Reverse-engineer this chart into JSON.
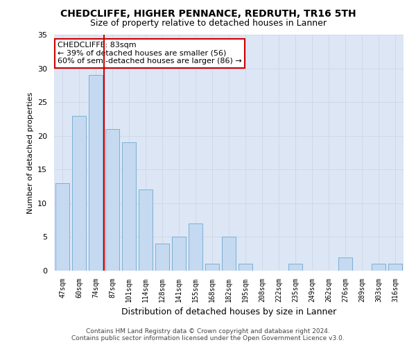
{
  "title1": "CHEDCLIFFE, HIGHER PENNANCE, REDRUTH, TR16 5TH",
  "title2": "Size of property relative to detached houses in Lanner",
  "xlabel": "Distribution of detached houses by size in Lanner",
  "ylabel": "Number of detached properties",
  "categories": [
    "47sqm",
    "60sqm",
    "74sqm",
    "87sqm",
    "101sqm",
    "114sqm",
    "128sqm",
    "141sqm",
    "155sqm",
    "168sqm",
    "182sqm",
    "195sqm",
    "208sqm",
    "222sqm",
    "235sqm",
    "249sqm",
    "262sqm",
    "276sqm",
    "289sqm",
    "303sqm",
    "316sqm"
  ],
  "values": [
    13,
    23,
    29,
    21,
    19,
    12,
    4,
    5,
    7,
    1,
    5,
    1,
    0,
    0,
    1,
    0,
    0,
    2,
    0,
    1,
    1
  ],
  "bar_color": "#c5d9f1",
  "bar_edge_color": "#7ab0d4",
  "vline_color": "#cc0000",
  "annotation_text": "CHEDCLIFFE: 83sqm\n← 39% of detached houses are smaller (56)\n60% of semi-detached houses are larger (86) →",
  "annotation_box_color": "#ffffff",
  "annotation_box_edge": "#cc0000",
  "ylim": [
    0,
    35
  ],
  "yticks": [
    0,
    5,
    10,
    15,
    20,
    25,
    30,
    35
  ],
  "footer1": "Contains HM Land Registry data © Crown copyright and database right 2024.",
  "footer2": "Contains public sector information licensed under the Open Government Licence v3.0.",
  "bg_color": "#ffffff",
  "grid_color": "#d0d8e8",
  "ax_bg_color": "#dce6f5"
}
